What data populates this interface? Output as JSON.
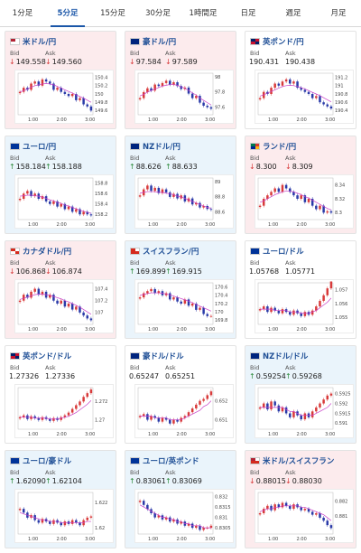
{
  "tabs": [
    {
      "label": "1分足",
      "active": false
    },
    {
      "label": "5分足",
      "active": true
    },
    {
      "label": "15分足",
      "active": false
    },
    {
      "label": "30分足",
      "active": false
    },
    {
      "label": "1時間足",
      "active": false
    },
    {
      "label": "日足",
      "active": false
    },
    {
      "label": "週足",
      "active": false
    },
    {
      "label": "月足",
      "active": false
    }
  ],
  "labels": {
    "bid": "Bid",
    "ask": "Ask"
  },
  "colors": {
    "down_card": "#fcebed",
    "up_card": "#eaf4fb",
    "candle_up": "#d83a3a",
    "candle_down": "#2a3aa8",
    "moving_average": "#c83fc8"
  },
  "cards": [
    {
      "pair": "米ドル/円",
      "flag": [
        "#b22234",
        "#ffffff",
        "#ffffff",
        "#ffffff"
      ],
      "bid": "149.558",
      "ask": "149.560",
      "direction": "down",
      "chart_data": {
        "type": "candlestick",
        "x_ticks": [
          "1:00",
          "2:00",
          "3:00"
        ],
        "y_ticks": [
          "150.4",
          "150.2",
          "150",
          "149.8",
          "149.6"
        ],
        "ylim": [
          149.5,
          150.5
        ],
        "closes": [
          150.05,
          150.15,
          150.1,
          150.25,
          150.3,
          150.2,
          150.35,
          150.3,
          150.25,
          150.1,
          150.15,
          150.05,
          150.0,
          149.95,
          150.0,
          149.85,
          149.9,
          149.75,
          149.7,
          149.6
        ],
        "ma": [
          150.05,
          150.08,
          150.12,
          150.16,
          150.2,
          150.22,
          150.24,
          150.25,
          150.24,
          150.22,
          150.18,
          150.14,
          150.1,
          150.06,
          150.02,
          149.98,
          149.94,
          149.9,
          149.85,
          149.8
        ]
      }
    },
    {
      "pair": "豪ドル/円",
      "flag": [
        "#00247d",
        "#00247d",
        "#00247d",
        "#00247d"
      ],
      "bid": "97.584",
      "ask": "97.589",
      "direction": "down",
      "chart_data": {
        "type": "candlestick",
        "x_ticks": [
          "1:00",
          "2:00",
          "3:00"
        ],
        "y_ticks": [
          "98",
          "97.8",
          "97.6"
        ],
        "ylim": [
          97.5,
          98.05
        ],
        "closes": [
          97.72,
          97.8,
          97.85,
          97.82,
          97.9,
          97.88,
          97.92,
          97.95,
          97.9,
          97.93,
          97.88,
          97.84,
          97.86,
          97.78,
          97.72,
          97.75,
          97.66,
          97.62,
          97.6,
          97.58
        ],
        "ma": [
          97.75,
          97.77,
          97.8,
          97.82,
          97.84,
          97.86,
          97.88,
          97.89,
          97.9,
          97.9,
          97.89,
          97.87,
          97.85,
          97.82,
          97.79,
          97.76,
          97.72,
          97.69,
          97.66,
          97.63
        ]
      }
    },
    {
      "pair": "英ポンド/円",
      "flag": [
        "#012169",
        "#c8102e",
        "#c8102e",
        "#012169"
      ],
      "bid": "190.431",
      "ask": "190.438",
      "direction": "neutral",
      "chart_data": {
        "type": "candlestick",
        "x_ticks": [
          "1:00",
          "2:00",
          "3:00"
        ],
        "y_ticks": [
          "191.2",
          "191",
          "190.8",
          "190.6",
          "190.4"
        ],
        "ylim": [
          190.3,
          191.3
        ],
        "closes": [
          190.7,
          190.85,
          190.8,
          190.95,
          191.05,
          191.0,
          191.1,
          191.15,
          191.05,
          191.1,
          190.95,
          190.9,
          190.85,
          190.8,
          190.7,
          190.75,
          190.6,
          190.55,
          190.5,
          190.45
        ],
        "ma": [
          190.75,
          190.78,
          190.82,
          190.86,
          190.9,
          190.94,
          190.98,
          191.0,
          191.01,
          191.0,
          190.98,
          190.95,
          190.92,
          190.88,
          190.84,
          190.8,
          190.76,
          190.71,
          190.66,
          190.61
        ]
      }
    },
    {
      "pair": "ユーロ/円",
      "flag": [
        "#003399",
        "#003399",
        "#003399",
        "#003399"
      ],
      "bid": "158.184",
      "ask": "158.188",
      "direction": "up",
      "chart_data": {
        "type": "candlestick",
        "x_ticks": [
          "1:00",
          "2:00",
          "3:00"
        ],
        "y_ticks": [
          "158.8",
          "158.6",
          "158.4",
          "158.2"
        ],
        "ylim": [
          158.1,
          158.9
        ],
        "closes": [
          158.5,
          158.6,
          158.65,
          158.55,
          158.6,
          158.5,
          158.55,
          158.45,
          158.4,
          158.45,
          158.35,
          158.4,
          158.3,
          158.35,
          158.25,
          158.3,
          158.2,
          158.25,
          158.2,
          158.18
        ],
        "ma": [
          158.55,
          158.56,
          158.57,
          158.57,
          158.56,
          158.55,
          158.53,
          158.51,
          158.48,
          158.46,
          158.43,
          158.41,
          158.38,
          158.36,
          158.33,
          158.31,
          158.28,
          158.26,
          158.24,
          158.22
        ]
      }
    },
    {
      "pair": "NZドル/円",
      "flag": [
        "#00247d",
        "#00247d",
        "#00247d",
        "#00247d"
      ],
      "bid": "88.626",
      "ask": "88.633",
      "direction": "up",
      "chart_data": {
        "type": "candlestick",
        "x_ticks": [
          "1:00",
          "2:00",
          "3:00"
        ],
        "y_ticks": [
          "89",
          "88.8",
          "88.6"
        ],
        "ylim": [
          88.5,
          89.05
        ],
        "closes": [
          88.82,
          88.9,
          88.95,
          88.88,
          88.92,
          88.85,
          88.9,
          88.86,
          88.8,
          88.84,
          88.78,
          88.82,
          88.74,
          88.78,
          88.7,
          88.72,
          88.66,
          88.68,
          88.64,
          88.63
        ],
        "ma": [
          88.85,
          88.86,
          88.87,
          88.87,
          88.87,
          88.86,
          88.86,
          88.85,
          88.84,
          88.83,
          88.81,
          88.8,
          88.78,
          88.76,
          88.74,
          88.72,
          88.7,
          88.68,
          88.66,
          88.65
        ]
      }
    },
    {
      "pair": "ランド/円",
      "flag": [
        "#007a4d",
        "#de3831",
        "#002395",
        "#ffb612"
      ],
      "bid": "8.300",
      "ask": "8.309",
      "direction": "down",
      "chart_data": {
        "type": "candlestick",
        "x_ticks": [
          "1:00",
          "2:00",
          "3:00"
        ],
        "y_ticks": [
          "8.34",
          "8.32",
          "8.3"
        ],
        "ylim": [
          8.29,
          8.35
        ],
        "closes": [
          8.31,
          8.32,
          8.325,
          8.33,
          8.335,
          8.33,
          8.34,
          8.335,
          8.33,
          8.325,
          8.32,
          8.325,
          8.315,
          8.32,
          8.31,
          8.305,
          8.31,
          8.3,
          8.302,
          8.3
        ],
        "ma": [
          8.315,
          8.317,
          8.32,
          8.323,
          8.326,
          8.328,
          8.33,
          8.331,
          8.331,
          8.33,
          8.328,
          8.326,
          8.323,
          8.321,
          8.318,
          8.315,
          8.312,
          8.309,
          8.306,
          8.304
        ]
      }
    },
    {
      "pair": "カナダドル/円",
      "flag": [
        "#d52b1e",
        "#ffffff",
        "#ffffff",
        "#d52b1e"
      ],
      "bid": "106.868",
      "ask": "106.874",
      "direction": "down",
      "chart_data": {
        "type": "candlestick",
        "x_ticks": [
          "1:00",
          "2:00",
          "3:00"
        ],
        "y_ticks": [
          "107.4",
          "107.2",
          "107"
        ],
        "ylim": [
          106.8,
          107.5
        ],
        "closes": [
          107.2,
          107.3,
          107.25,
          107.35,
          107.4,
          107.3,
          107.35,
          107.25,
          107.3,
          107.2,
          107.15,
          107.2,
          107.1,
          107.15,
          107.05,
          107.1,
          107.0,
          106.95,
          106.9,
          106.87
        ],
        "ma": [
          107.22,
          107.24,
          107.26,
          107.28,
          107.3,
          107.31,
          107.31,
          107.3,
          107.29,
          107.27,
          107.25,
          107.23,
          107.2,
          107.18,
          107.15,
          107.12,
          107.09,
          107.05,
          107.01,
          106.97
        ]
      }
    },
    {
      "pair": "スイスフラン/円",
      "flag": [
        "#d52b1e",
        "#ffffff",
        "#d52b1e",
        "#d52b1e"
      ],
      "bid": "169.899",
      "ask": "169.915",
      "direction": "up",
      "chart_data": {
        "type": "candlestick",
        "x_ticks": [
          "1:00",
          "2:00",
          "3:00"
        ],
        "y_ticks": [
          "170.6",
          "170.4",
          "170.2",
          "170",
          "169.8"
        ],
        "ylim": [
          169.7,
          170.7
        ],
        "closes": [
          170.35,
          170.45,
          170.5,
          170.55,
          170.45,
          170.5,
          170.4,
          170.45,
          170.3,
          170.35,
          170.25,
          170.2,
          170.3,
          170.15,
          170.2,
          170.05,
          170.1,
          169.95,
          169.9,
          169.9
        ],
        "ma": [
          170.4,
          170.42,
          170.44,
          170.46,
          170.46,
          170.46,
          170.45,
          170.43,
          170.41,
          170.38,
          170.35,
          170.32,
          170.29,
          170.26,
          170.22,
          170.18,
          170.14,
          170.1,
          170.06,
          170.02
        ]
      }
    },
    {
      "pair": "ユーロ/ドル",
      "flag": [
        "#003399",
        "#003399",
        "#003399",
        "#003399"
      ],
      "bid": "1.05768",
      "ask": "1.05771",
      "direction": "neutral",
      "chart_data": {
        "type": "candlestick",
        "x_ticks": [
          "1:00",
          "2:00",
          "3:00"
        ],
        "y_ticks": [
          "1.057",
          "1.056",
          "1.055"
        ],
        "ylim": [
          1.0545,
          1.0575
        ],
        "closes": [
          1.0556,
          1.0558,
          1.0554,
          1.0557,
          1.0555,
          1.0553,
          1.0556,
          1.0554,
          1.0552,
          1.0555,
          1.0553,
          1.0551,
          1.0554,
          1.0552,
          1.0555,
          1.0558,
          1.0562,
          1.0566,
          1.0571,
          1.0576
        ],
        "ma": [
          1.0556,
          1.0556,
          1.0556,
          1.0556,
          1.0555,
          1.0555,
          1.0555,
          1.0555,
          1.0554,
          1.0554,
          1.0554,
          1.0553,
          1.0553,
          1.0553,
          1.0554,
          1.0555,
          1.0557,
          1.0559,
          1.0561,
          1.0564
        ]
      }
    },
    {
      "pair": "英ポンド/ドル",
      "flag": [
        "#012169",
        "#c8102e",
        "#c8102e",
        "#012169"
      ],
      "bid": "1.27326",
      "ask": "1.27336",
      "direction": "neutral",
      "chart_data": {
        "type": "candlestick",
        "x_ticks": [
          "1:00",
          "2:00",
          "3:00"
        ],
        "y_ticks": [
          "1.272",
          "1.27"
        ],
        "ylim": [
          1.269,
          1.2735
        ],
        "closes": [
          1.2703,
          1.2705,
          1.2701,
          1.2704,
          1.2702,
          1.27,
          1.2703,
          1.2701,
          1.2699,
          1.2702,
          1.27,
          1.2703,
          1.2705,
          1.2708,
          1.2712,
          1.2716,
          1.272,
          1.2725,
          1.2729,
          1.2733
        ],
        "ma": [
          1.2703,
          1.2703,
          1.2703,
          1.2703,
          1.2702,
          1.2702,
          1.2702,
          1.2702,
          1.2701,
          1.2701,
          1.2701,
          1.2702,
          1.2703,
          1.2704,
          1.2706,
          1.2708,
          1.2711,
          1.2714,
          1.2717,
          1.2721
        ]
      }
    },
    {
      "pair": "豪ドル/ドル",
      "flag": [
        "#00247d",
        "#00247d",
        "#00247d",
        "#00247d"
      ],
      "bid": "0.65247",
      "ask": "0.65251",
      "direction": "neutral",
      "chart_data": {
        "type": "candlestick",
        "x_ticks": [
          "1:00",
          "2:00",
          "3:00"
        ],
        "y_ticks": [
          "0.652",
          "0.651"
        ],
        "ylim": [
          0.6505,
          0.6527
        ],
        "closes": [
          0.6512,
          0.6513,
          0.651,
          0.6512,
          0.6511,
          0.6509,
          0.6511,
          0.651,
          0.6508,
          0.651,
          0.6509,
          0.6511,
          0.6512,
          0.6514,
          0.6516,
          0.6518,
          0.652,
          0.6521,
          0.6523,
          0.6525
        ],
        "ma": [
          0.6512,
          0.6512,
          0.6512,
          0.6512,
          0.6511,
          0.6511,
          0.6511,
          0.6511,
          0.651,
          0.651,
          0.651,
          0.651,
          0.6511,
          0.6512,
          0.6513,
          0.6514,
          0.6515,
          0.6517,
          0.6518,
          0.652
        ]
      }
    },
    {
      "pair": "NZドル/ドル",
      "flag": [
        "#00247d",
        "#00247d",
        "#00247d",
        "#00247d"
      ],
      "bid": "0.59254",
      "ask": "0.59268",
      "direction": "up",
      "chart_data": {
        "type": "candlestick",
        "x_ticks": [
          "1:00",
          "2:00",
          "3:00"
        ],
        "y_ticks": [
          "0.5925",
          "0.592",
          "0.5915",
          "0.591"
        ],
        "ylim": [
          0.5907,
          0.5928
        ],
        "closes": [
          0.5918,
          0.592,
          0.5917,
          0.5921,
          0.5919,
          0.5916,
          0.5918,
          0.5915,
          0.5913,
          0.5916,
          0.5914,
          0.5912,
          0.5915,
          0.5913,
          0.5916,
          0.5918,
          0.592,
          0.5922,
          0.5924,
          0.5925
        ],
        "ma": [
          0.5918,
          0.5918,
          0.5918,
          0.5918,
          0.5918,
          0.5918,
          0.5918,
          0.5917,
          0.5916,
          0.5916,
          0.5915,
          0.5914,
          0.5914,
          0.5914,
          0.5914,
          0.5915,
          0.5916,
          0.5917,
          0.5918,
          0.592
        ]
      }
    },
    {
      "pair": "ユーロ/豪ドル",
      "flag": [
        "#003399",
        "#003399",
        "#003399",
        "#003399"
      ],
      "bid": "1.62090",
      "ask": "1.62104",
      "direction": "up",
      "chart_data": {
        "type": "candlestick",
        "x_ticks": [
          "1:00",
          "2:00",
          "3:00"
        ],
        "y_ticks": [
          "1.622",
          "1.62"
        ],
        "ylim": [
          1.6195,
          1.6228
        ],
        "closes": [
          1.6215,
          1.6212,
          1.6208,
          1.621,
          1.6206,
          1.6204,
          1.6207,
          1.6205,
          1.6203,
          1.6206,
          1.6204,
          1.6202,
          1.6205,
          1.6203,
          1.6206,
          1.6204,
          1.6202,
          1.6206,
          1.6208,
          1.6209
        ],
        "ma": [
          1.6212,
          1.6211,
          1.621,
          1.6209,
          1.6208,
          1.6207,
          1.6206,
          1.6206,
          1.6205,
          1.6205,
          1.6205,
          1.6204,
          1.6204,
          1.6204,
          1.6204,
          1.6204,
          1.6204,
          1.6204,
          1.6205,
          1.6205
        ]
      }
    },
    {
      "pair": "ユーロ/英ポンド",
      "flag": [
        "#003399",
        "#003399",
        "#003399",
        "#003399"
      ],
      "bid": "0.83061",
      "ask": "0.83069",
      "direction": "up",
      "chart_data": {
        "type": "candlestick",
        "x_ticks": [
          "1:00",
          "2:00",
          "3:00"
        ],
        "y_ticks": [
          "0.832",
          "0.8315",
          "0.831",
          "0.8305"
        ],
        "ylim": [
          0.8302,
          0.8322
        ],
        "closes": [
          0.8318,
          0.8316,
          0.8314,
          0.8312,
          0.831,
          0.8311,
          0.8309,
          0.831,
          0.8308,
          0.8309,
          0.8307,
          0.8308,
          0.8306,
          0.8307,
          0.8305,
          0.8306,
          0.8304,
          0.8305,
          0.8305,
          0.8306
        ],
        "ma": [
          0.8316,
          0.8315,
          0.8314,
          0.8313,
          0.8312,
          0.8311,
          0.831,
          0.831,
          0.8309,
          0.8309,
          0.8308,
          0.8308,
          0.8307,
          0.8307,
          0.8306,
          0.8306,
          0.8306,
          0.8305,
          0.8305,
          0.8305
        ]
      }
    },
    {
      "pair": "米ドル/スイスフラン",
      "flag": [
        "#b22234",
        "#ffffff",
        "#d52b1e",
        "#d52b1e"
      ],
      "bid": "0.88015",
      "ask": "0.88030",
      "direction": "down",
      "chart_data": {
        "type": "candlestick",
        "x_ticks": [
          "1:00",
          "2:00",
          "3:00"
        ],
        "y_ticks": [
          "0.882",
          "0.881"
        ],
        "ylim": [
          0.8798,
          0.8826
        ],
        "closes": [
          0.8812,
          0.8815,
          0.8817,
          0.8814,
          0.8818,
          0.8816,
          0.8819,
          0.8817,
          0.8815,
          0.8818,
          0.8816,
          0.8814,
          0.8815,
          0.8813,
          0.8811,
          0.8812,
          0.8809,
          0.8807,
          0.8804,
          0.8802
        ],
        "ma": [
          0.8813,
          0.8814,
          0.8815,
          0.8815,
          0.8816,
          0.8816,
          0.8817,
          0.8817,
          0.8817,
          0.8817,
          0.8817,
          0.8816,
          0.8816,
          0.8815,
          0.8814,
          0.8813,
          0.8812,
          0.8811,
          0.8809,
          0.8807
        ]
      }
    }
  ]
}
